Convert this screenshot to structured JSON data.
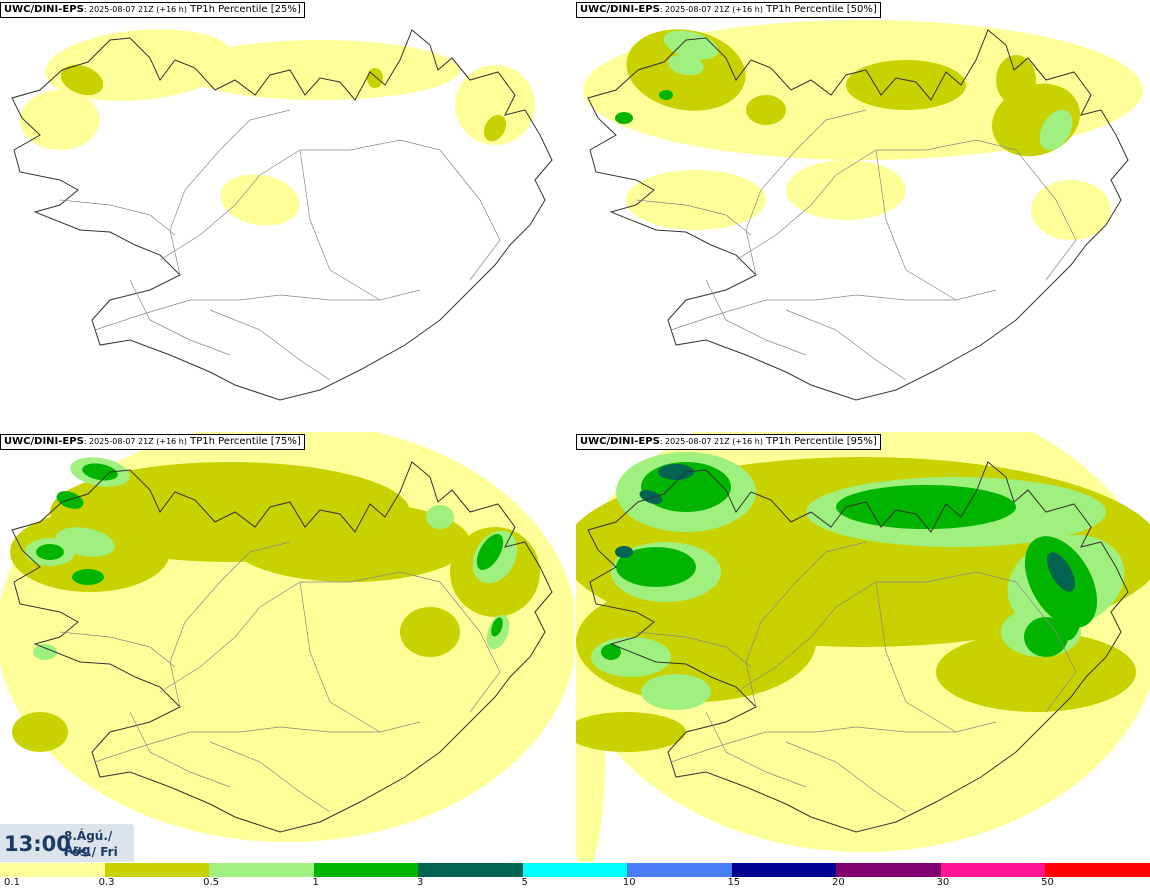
{
  "panels": [
    {
      "model": "UWC/DINI-EPS",
      "run": ": 2025-08-07 21Z (+16 h)",
      "param": " TP1h Percentile [25%]"
    },
    {
      "model": "UWC/DINI-EPS",
      "run": ": 2025-08-07 21Z (+16 h)",
      "param": " TP1h Percentile [50%]"
    },
    {
      "model": "UWC/DINI-EPS",
      "run": ": 2025-08-07 21Z (+16 h)",
      "param": " TP1h Percentile [75%]"
    },
    {
      "model": "UWC/DINI-EPS",
      "run": ": 2025-08-07 21Z (+16 h)",
      "param": " TP1h Percentile [95%]"
    }
  ],
  "valid_time": {
    "clock": "13:00",
    "date_line1": "8.Ágú./ Aug",
    "date_line2": "Fös./ Fri"
  },
  "legend": {
    "labels": [
      "0.1",
      "0.3",
      "0.5",
      "1",
      "3",
      "5",
      "10",
      "15",
      "20",
      "30",
      "50"
    ],
    "colors": [
      "#ffff99",
      "#c8d200",
      "#a0f080",
      "#00b400",
      "#006450",
      "#00ffff",
      "#4a7cf5",
      "#000090",
      "#800070",
      "#ff1493",
      "#ff0000"
    ]
  }
}
